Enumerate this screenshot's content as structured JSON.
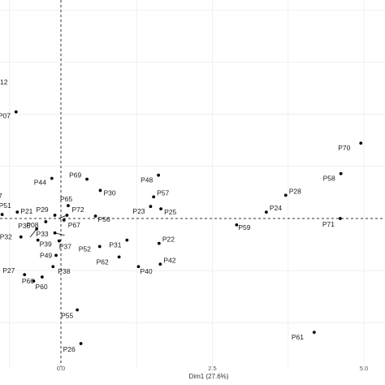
{
  "chart_data": {
    "type": "scatter",
    "xlabel": "Dim1 (27.6%)",
    "ylabel": "",
    "xlim": [
      -1.0,
      5.4
    ],
    "ylim": [
      -2.6,
      2.7
    ],
    "x_ticks": [
      0.0,
      2.5,
      5.0
    ],
    "x_tick_labels": [
      "0.0",
      "2.5",
      "5.0"
    ],
    "grid": true,
    "reference_lines": {
      "x": 0,
      "y": 0
    },
    "points": [
      {
        "label": "P70",
        "x": 4.95,
        "y": 0.94
      },
      {
        "label": "P58",
        "x": 4.62,
        "y": 0.56
      },
      {
        "label": "P28",
        "x": 3.71,
        "y": 0.29
      },
      {
        "label": "P24",
        "x": 3.39,
        "y": 0.08
      },
      {
        "label": "P59",
        "x": 2.9,
        "y": -0.08
      },
      {
        "label": "P71",
        "x": 4.61,
        "y": 0.0
      },
      {
        "label": "P61",
        "x": 4.18,
        "y": -1.42
      },
      {
        "label": "P48",
        "x": 1.61,
        "y": 0.54
      },
      {
        "label": "P57",
        "x": 1.53,
        "y": 0.27
      },
      {
        "label": "P23",
        "x": 1.48,
        "y": 0.15
      },
      {
        "label": "P25",
        "x": 1.65,
        "y": 0.12
      },
      {
        "label": "P22",
        "x": 1.62,
        "y": -0.31
      },
      {
        "label": "P42",
        "x": 1.64,
        "y": -0.57
      },
      {
        "label": "P40",
        "x": 1.28,
        "y": -0.6
      },
      {
        "label": "P31",
        "x": 1.09,
        "y": -0.27
      },
      {
        "label": "P62",
        "x": 0.96,
        "y": -0.48
      },
      {
        "label": "P52",
        "x": 0.64,
        "y": -0.35
      },
      {
        "label": "P69",
        "x": 0.43,
        "y": 0.49
      },
      {
        "label": "P30",
        "x": 0.65,
        "y": 0.35
      },
      {
        "label": "P65",
        "x": 0.12,
        "y": 0.16
      },
      {
        "label": "P56",
        "x": 0.57,
        "y": 0.03
      },
      {
        "label": "P72",
        "x": 0.1,
        "y": 0.04
      },
      {
        "label": "P67",
        "x": 0.05,
        "y": -0.02
      },
      {
        "label": "P29",
        "x": -0.1,
        "y": 0.04
      },
      {
        "label": "P08",
        "x": -0.25,
        "y": -0.04
      },
      {
        "label": "P33",
        "x": -0.1,
        "y": -0.18
      },
      {
        "label": "P37",
        "x": -0.03,
        "y": -0.28
      },
      {
        "label": "P49",
        "x": -0.08,
        "y": -0.46
      },
      {
        "label": "P38",
        "x": -0.13,
        "y": -0.6
      },
      {
        "label": "P39",
        "x": -0.38,
        "y": -0.27
      },
      {
        "label": "P36",
        "x": -0.4,
        "y": -0.13
      },
      {
        "label": "P32",
        "x": -0.66,
        "y": -0.23
      },
      {
        "label": "P21",
        "x": -0.72,
        "y": 0.08
      },
      {
        "label": "P44",
        "x": -0.15,
        "y": 0.5
      },
      {
        "label": "P27",
        "x": -0.6,
        "y": -0.7
      },
      {
        "label": "P66",
        "x": -0.31,
        "y": -0.73
      },
      {
        "label": "P60",
        "x": -0.45,
        "y": -0.78
      },
      {
        "label": "P55",
        "x": 0.27,
        "y": -1.14
      },
      {
        "label": "P26",
        "x": 0.33,
        "y": -1.56
      },
      {
        "label": "P07",
        "x": -0.74,
        "y": 1.33
      },
      {
        "label": "P51",
        "x": -0.97,
        "y": 0.05
      }
    ],
    "edge_labels": [
      "12",
      "7"
    ]
  }
}
